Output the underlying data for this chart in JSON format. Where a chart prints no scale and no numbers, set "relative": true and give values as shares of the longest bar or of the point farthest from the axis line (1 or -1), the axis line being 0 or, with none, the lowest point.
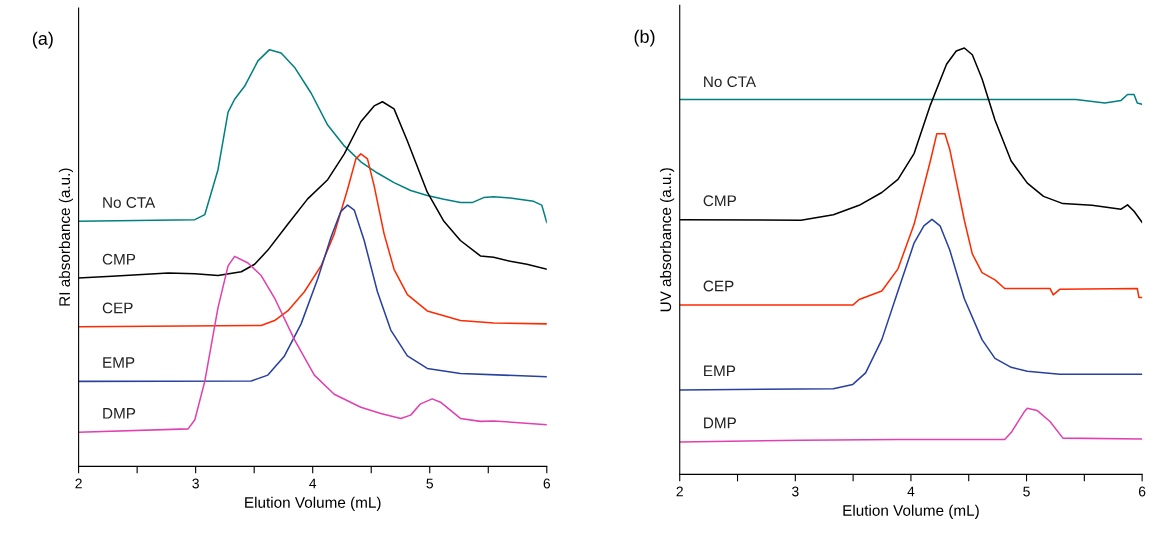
{
  "chart_data": [
    {
      "type": "line",
      "title": "(a)",
      "xlabel": "Elution Volume (mL)",
      "ylabel": "RI absorbance (a.u.)",
      "relative": true,
      "xlim": [
        2,
        6
      ],
      "xticks": [
        2,
        {
          "value": 2.5,
          "label": null
        },
        3,
        {
          "value": 3.5,
          "label": null
        },
        4,
        {
          "value": 4.5,
          "label": null
        },
        5,
        {
          "value": 5.5,
          "label": null
        },
        6
      ],
      "tick_labels": "x",
      "grid": false,
      "legend": false,
      "series": [
        {
          "name": "No CTA",
          "color": "#008080",
          "x": [
            2,
            2.993,
            3.078,
            3.191,
            3.277,
            3.333,
            3.418,
            3.532,
            3.631,
            3.73,
            3.844,
            3.986,
            4.128,
            4.27,
            4.411,
            4.553,
            4.695,
            4.837,
            4.979,
            5.121,
            5.262,
            5.362,
            5.461,
            5.546,
            5.688,
            5.887,
            5.957,
            6
          ],
          "values": [
            0.588,
            0.592,
            0.604,
            0.712,
            0.85,
            0.881,
            0.912,
            0.973,
            1.0,
            0.992,
            0.958,
            0.896,
            0.819,
            0.769,
            0.731,
            0.704,
            0.681,
            0.662,
            0.65,
            0.641,
            0.633,
            0.633,
            0.645,
            0.647,
            0.644,
            0.636,
            0.627,
            0.585
          ]
        },
        {
          "name": "CMP",
          "color": "#000000",
          "x": [
            2,
            2.284,
            2.766,
            2.993,
            3.191,
            3.39,
            3.504,
            3.617,
            3.787,
            3.957,
            4.128,
            4.27,
            4.411,
            4.525,
            4.596,
            4.695,
            4.809,
            4.979,
            5.121,
            5.262,
            5.433,
            5.546,
            5.688,
            5.83,
            6
          ],
          "values": [
            0.452,
            0.456,
            0.464,
            0.462,
            0.458,
            0.467,
            0.485,
            0.519,
            0.581,
            0.642,
            0.688,
            0.75,
            0.827,
            0.865,
            0.875,
            0.858,
            0.781,
            0.658,
            0.588,
            0.542,
            0.505,
            0.502,
            0.492,
            0.485,
            0.473
          ]
        },
        {
          "name": "CEP",
          "color": "#ff2a00",
          "x": [
            2,
            3.56,
            3.674,
            3.787,
            3.929,
            4.071,
            4.184,
            4.298,
            4.369,
            4.411,
            4.468,
            4.525,
            4.61,
            4.695,
            4.809,
            4.979,
            5.262,
            5.546,
            6
          ],
          "values": [
            0.335,
            0.338,
            0.35,
            0.373,
            0.419,
            0.481,
            0.558,
            0.665,
            0.738,
            0.75,
            0.738,
            0.673,
            0.558,
            0.473,
            0.412,
            0.373,
            0.35,
            0.344,
            0.342
          ]
        },
        {
          "name": "EMP",
          "color": "#2840a0",
          "x": [
            2,
            3.475,
            3.617,
            3.759,
            3.901,
            4.043,
            4.156,
            4.241,
            4.298,
            4.355,
            4.44,
            4.553,
            4.667,
            4.809,
            4.979,
            5.262,
            6
          ],
          "values": [
            0.204,
            0.205,
            0.219,
            0.265,
            0.342,
            0.45,
            0.55,
            0.612,
            0.627,
            0.615,
            0.542,
            0.419,
            0.327,
            0.265,
            0.235,
            0.223,
            0.215
          ]
        },
        {
          "name": "DMP",
          "color": "#e040b0",
          "x": [
            2,
            2.936,
            2.993,
            3.078,
            3.191,
            3.277,
            3.333,
            3.447,
            3.56,
            3.674,
            3.844,
            4.014,
            4.184,
            4.411,
            4.582,
            4.752,
            4.837,
            4.922,
            5.021,
            5.092,
            5.262,
            5.433,
            5.546,
            6
          ],
          "values": [
            0.082,
            0.09,
            0.112,
            0.204,
            0.381,
            0.481,
            0.504,
            0.488,
            0.458,
            0.404,
            0.304,
            0.219,
            0.173,
            0.142,
            0.127,
            0.115,
            0.123,
            0.15,
            0.162,
            0.154,
            0.115,
            0.108,
            0.109,
            0.1
          ]
        }
      ]
    },
    {
      "type": "line",
      "title": "(b)",
      "xlabel": "Elution Volume (mL)",
      "ylabel": "UV absorbance (a.u.)",
      "relative": true,
      "xlim": [
        2,
        6
      ],
      "xticks": [
        2,
        {
          "value": 2.5,
          "label": null
        },
        3,
        {
          "value": 3.5,
          "label": null
        },
        4,
        {
          "value": 4.5,
          "label": null
        },
        5,
        {
          "value": 5.5,
          "label": null
        },
        6
      ],
      "tick_labels": "x",
      "grid": false,
      "legend": false,
      "series": [
        {
          "name": "No CTA",
          "color": "#008080",
          "x": [
            2,
            5.427,
            5.678,
            5.818,
            5.874,
            5.93,
            5.958,
            6
          ],
          "values": [
            0.879,
            0.879,
            0.871,
            0.877,
            0.891,
            0.891,
            0.871,
            0.868
          ]
        },
        {
          "name": "CMP",
          "color": "#000000",
          "x": [
            2,
            3.049,
            3.329,
            3.552,
            3.748,
            3.888,
            4.028,
            4.168,
            4.308,
            4.392,
            4.462,
            4.531,
            4.615,
            4.727,
            4.867,
            5.007,
            5.147,
            5.315,
            5.566,
            5.818,
            5.874,
            5.93,
            6
          ],
          "values": [
            0.597,
            0.596,
            0.609,
            0.631,
            0.661,
            0.692,
            0.753,
            0.866,
            0.962,
            0.993,
            1.0,
            0.984,
            0.928,
            0.831,
            0.735,
            0.683,
            0.652,
            0.635,
            0.631,
            0.622,
            0.632,
            0.617,
            0.591
          ]
        },
        {
          "name": "CEP",
          "color": "#ff2a00",
          "x": [
            2,
            3.497,
            3.552,
            3.748,
            3.888,
            4.028,
            4.168,
            4.224,
            4.294,
            4.336,
            4.462,
            4.531,
            4.615,
            4.727,
            4.811,
            5.203,
            5.231,
            5.287,
            5.958,
            5.972,
            6
          ],
          "values": [
            0.397,
            0.397,
            0.41,
            0.43,
            0.482,
            0.587,
            0.735,
            0.799,
            0.799,
            0.762,
            0.596,
            0.517,
            0.473,
            0.456,
            0.436,
            0.436,
            0.421,
            0.434,
            0.436,
            0.415,
            0.415
          ]
        },
        {
          "name": "EMP",
          "color": "#2840a0",
          "x": [
            2,
            3.329,
            3.497,
            3.608,
            3.748,
            3.888,
            4.028,
            4.112,
            4.182,
            4.252,
            4.336,
            4.462,
            4.615,
            4.727,
            4.867,
            5.007,
            5.287,
            6
          ],
          "values": [
            0.198,
            0.201,
            0.211,
            0.238,
            0.316,
            0.43,
            0.543,
            0.583,
            0.598,
            0.583,
            0.526,
            0.412,
            0.316,
            0.272,
            0.251,
            0.242,
            0.235,
            0.235
          ]
        },
        {
          "name": "DMP",
          "color": "#e040b0",
          "x": [
            2,
            3.049,
            3.888,
            4.811,
            4.867,
            4.979,
            5.007,
            5.091,
            5.203,
            5.315,
            6
          ],
          "values": [
            0.076,
            0.08,
            0.082,
            0.082,
            0.098,
            0.146,
            0.155,
            0.15,
            0.124,
            0.085,
            0.083
          ]
        }
      ]
    }
  ]
}
